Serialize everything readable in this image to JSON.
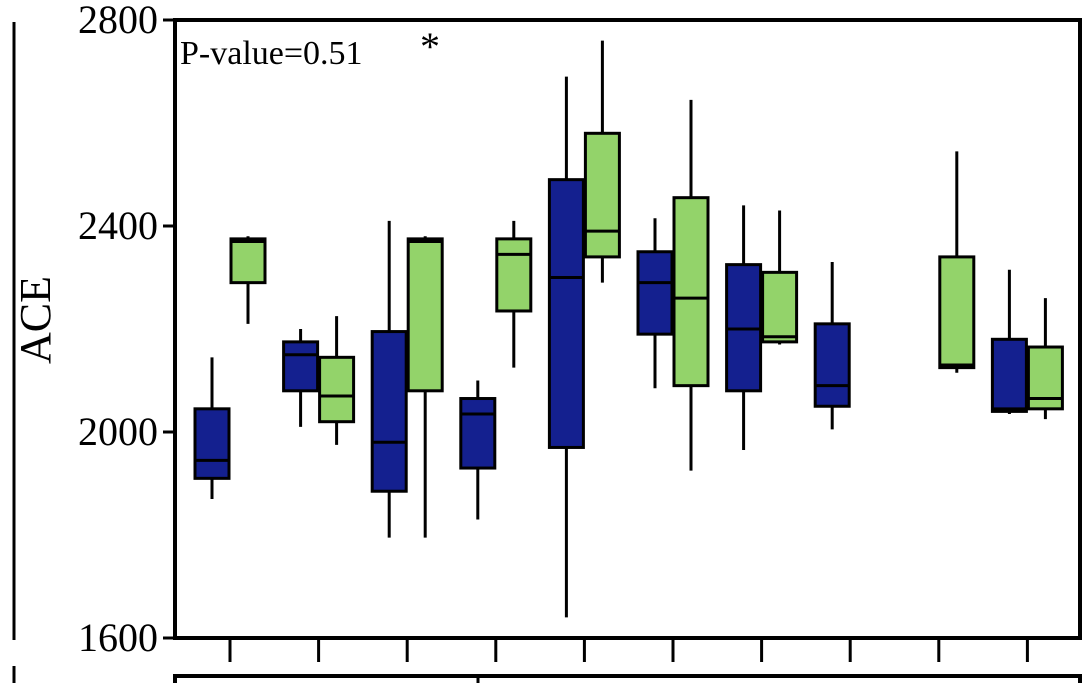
{
  "chart_data": {
    "type": "box",
    "ylabel": "ACE",
    "ylim": [
      1600,
      2800
    ],
    "yticks": [
      "2800",
      "2400",
      "2000",
      "1600"
    ],
    "annotation": "P-value=0.51",
    "annotation_mark": "*",
    "colors": {
      "blue": "#14208f",
      "green": "#93d36a",
      "stroke": "#000000"
    },
    "series": [
      {
        "color": "blue",
        "boxes": [
          {
            "min": 1870,
            "q1": 1910,
            "median": 1945,
            "q3": 2045,
            "max": 2145
          },
          {
            "min": 2010,
            "q1": 2080,
            "median": 2150,
            "q3": 2175,
            "max": 2200
          },
          {
            "min": 1795,
            "q1": 1885,
            "median": 1980,
            "q3": 2195,
            "max": 2410
          },
          {
            "min": 1830,
            "q1": 1930,
            "median": 2035,
            "q3": 2065,
            "max": 2100
          },
          {
            "min": 1640,
            "q1": 1970,
            "median": 2300,
            "q3": 2490,
            "max": 2690
          },
          {
            "min": 2085,
            "q1": 2190,
            "median": 2290,
            "q3": 2350,
            "max": 2415
          },
          {
            "min": 1965,
            "q1": 2080,
            "median": 2200,
            "q3": 2325,
            "max": 2440
          },
          {
            "min": 2005,
            "q1": 2050,
            "median": 2090,
            "q3": 2210,
            "max": 2330
          },
          null,
          {
            "min": 2035,
            "q1": 2040,
            "median": 2045,
            "q3": 2180,
            "max": 2315
          }
        ]
      },
      {
        "color": "green",
        "boxes": [
          {
            "min": 2210,
            "q1": 2290,
            "median": 2370,
            "q3": 2375,
            "max": 2380
          },
          {
            "min": 1975,
            "q1": 2020,
            "median": 2070,
            "q3": 2145,
            "max": 2225
          },
          {
            "min": 1795,
            "q1": 2080,
            "median": 2370,
            "q3": 2375,
            "max": 2380
          },
          {
            "min": 2125,
            "q1": 2235,
            "median": 2345,
            "q3": 2375,
            "max": 2410
          },
          {
            "min": 2290,
            "q1": 2340,
            "median": 2390,
            "q3": 2580,
            "max": 2760
          },
          {
            "min": 1925,
            "q1": 2090,
            "median": 2260,
            "q3": 2455,
            "max": 2645
          },
          {
            "min": 2170,
            "q1": 2175,
            "median": 2185,
            "q3": 2310,
            "max": 2430
          },
          null,
          {
            "min": 2115,
            "q1": 2125,
            "median": 2130,
            "q3": 2340,
            "max": 2545
          },
          {
            "min": 2025,
            "q1": 2045,
            "median": 2065,
            "q3": 2165,
            "max": 2260
          }
        ]
      }
    ]
  }
}
